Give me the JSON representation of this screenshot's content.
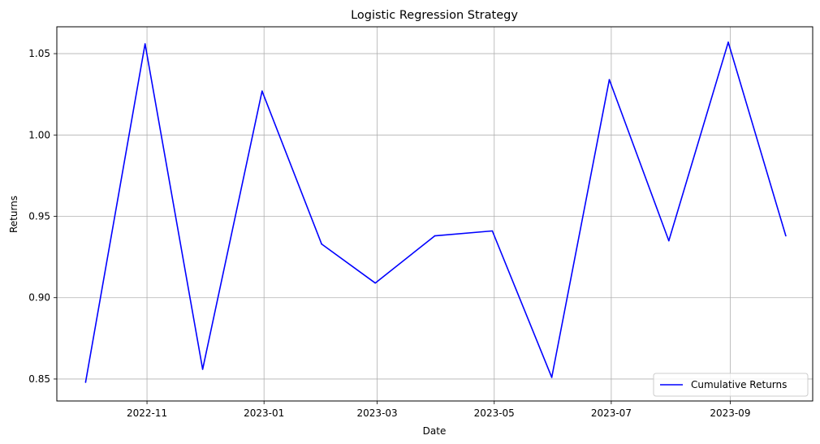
{
  "chart_data": {
    "type": "line",
    "title": "Logistic Regression Strategy",
    "xlabel": "Date",
    "ylabel": "Returns",
    "x_range": [
      "2022-09-15",
      "2023-10-14"
    ],
    "ylim": [
      0.8365,
      1.0665
    ],
    "x_ticks": [
      {
        "date": "2022-11-01",
        "label": "2022-11"
      },
      {
        "date": "2023-01-01",
        "label": "2023-01"
      },
      {
        "date": "2023-03-01",
        "label": "2023-03"
      },
      {
        "date": "2023-05-01",
        "label": "2023-05"
      },
      {
        "date": "2023-07-01",
        "label": "2023-07"
      },
      {
        "date": "2023-09-01",
        "label": "2023-09"
      }
    ],
    "y_ticks": [
      {
        "value": 0.85,
        "label": "0.85"
      },
      {
        "value": 0.9,
        "label": "0.90"
      },
      {
        "value": 0.95,
        "label": "0.95"
      },
      {
        "value": 1.0,
        "label": "1.00"
      },
      {
        "value": 1.05,
        "label": "1.05"
      }
    ],
    "grid": true,
    "legend_position": "lower-right",
    "series": [
      {
        "name": "Cumulative Returns",
        "color": "#0000ff",
        "points": [
          {
            "x": "2022-09-30",
            "y": 0.848
          },
          {
            "x": "2022-10-31",
            "y": 1.056
          },
          {
            "x": "2022-11-30",
            "y": 0.856
          },
          {
            "x": "2022-12-31",
            "y": 1.027
          },
          {
            "x": "2023-01-31",
            "y": 0.933
          },
          {
            "x": "2023-02-28",
            "y": 0.909
          },
          {
            "x": "2023-03-31",
            "y": 0.938
          },
          {
            "x": "2023-04-30",
            "y": 0.941
          },
          {
            "x": "2023-05-31",
            "y": 0.851
          },
          {
            "x": "2023-06-30",
            "y": 1.034
          },
          {
            "x": "2023-07-31",
            "y": 0.935
          },
          {
            "x": "2023-08-31",
            "y": 1.057
          },
          {
            "x": "2023-09-30",
            "y": 0.938
          }
        ]
      }
    ]
  }
}
